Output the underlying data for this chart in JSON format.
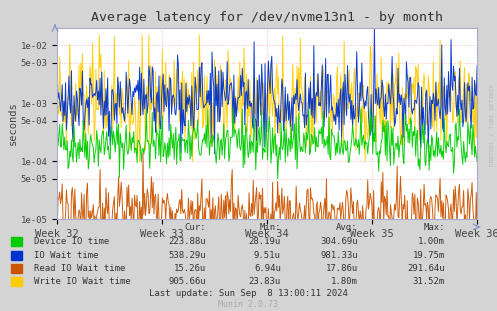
{
  "title": "Average latency for /dev/nvme13n1 - by month",
  "ylabel": "seconds",
  "xlabel_ticks": [
    "Week 32",
    "Week 33",
    "Week 34",
    "Week 35",
    "Week 36"
  ],
  "xlabel_tick_positions": [
    0.0,
    0.25,
    0.5,
    0.75,
    1.0
  ],
  "ylim_log": [
    1e-05,
    0.02
  ],
  "bg_color": "#d4d4d4",
  "plot_bg_color": "#ffffff",
  "grid_color": "#ff9999",
  "series": [
    {
      "name": "Device IO time",
      "color": "#00cc00"
    },
    {
      "name": "IO Wait time",
      "color": "#0033cc"
    },
    {
      "name": "Read IO Wait time",
      "color": "#cc5500"
    },
    {
      "name": "Write IO Wait time",
      "color": "#ffcc00"
    }
  ],
  "legend_data": [
    {
      "label": "Device IO time",
      "cur": "223.88u",
      "min": "28.19u",
      "avg": "304.69u",
      "max": "1.00m"
    },
    {
      "label": "IO Wait time",
      "cur": "538.29u",
      "min": "9.51u",
      "avg": "981.33u",
      "max": "19.75m"
    },
    {
      "label": "Read IO Wait time",
      "cur": "15.26u",
      "min": "6.94u",
      "avg": "17.86u",
      "max": "291.64u"
    },
    {
      "label": "Write IO Wait time",
      "cur": "905.66u",
      "min": "23.83u",
      "avg": "1.80m",
      "max": "31.52m"
    }
  ],
  "last_update": "Last update: Sun Sep  8 13:00:11 2024",
  "munin_version": "Munin 2.0.73",
  "rrdtool_label": "RRDTOOL / TOBI OETIKER",
  "num_points": 500,
  "seed": 42,
  "yticks": [
    1e-05,
    5e-05,
    0.0001,
    0.0005,
    0.001,
    0.005,
    0.01
  ],
  "ylabels": [
    "1e-05",
    "5e-05",
    "1e-04",
    "5e-04",
    "1e-03",
    "5e-03",
    "1e-02"
  ]
}
